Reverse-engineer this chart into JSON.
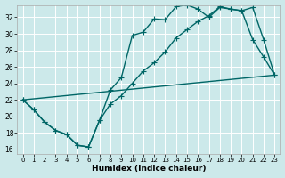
{
  "xlabel": "Humidex (Indice chaleur)",
  "bg_color": "#cce9ea",
  "grid_color": "#b8d8da",
  "line_color": "#006666",
  "xlim": [
    -0.5,
    23.5
  ],
  "ylim": [
    15.5,
    33.5
  ],
  "xticks": [
    0,
    1,
    2,
    3,
    4,
    5,
    6,
    7,
    8,
    9,
    10,
    11,
    12,
    13,
    14,
    15,
    16,
    17,
    18,
    19,
    20,
    21,
    22,
    23
  ],
  "yticks": [
    16,
    18,
    20,
    22,
    24,
    26,
    28,
    30,
    32
  ],
  "line1_x": [
    0,
    1,
    2,
    3,
    4,
    5,
    6,
    7,
    8,
    9,
    10,
    11,
    12,
    13,
    14,
    15,
    16,
    17,
    18,
    19,
    20,
    21,
    22,
    23
  ],
  "line1_y": [
    22.0,
    20.8,
    19.3,
    18.3,
    17.8,
    16.5,
    16.3,
    19.5,
    23.2,
    24.7,
    29.8,
    30.2,
    31.8,
    31.7,
    33.3,
    33.5,
    33.0,
    32.0,
    33.2,
    33.0,
    32.8,
    29.3,
    27.2,
    25.0
  ],
  "line2_x": [
    0,
    1,
    2,
    3,
    4,
    5,
    6,
    7,
    8,
    9,
    10,
    11,
    12,
    13,
    14,
    15,
    16,
    17,
    18,
    19,
    20,
    21,
    22,
    23
  ],
  "line2_y": [
    22.0,
    20.8,
    19.3,
    18.3,
    17.8,
    16.5,
    16.3,
    19.5,
    21.5,
    22.5,
    24.0,
    25.5,
    26.5,
    27.8,
    29.5,
    30.5,
    31.5,
    32.2,
    33.3,
    33.0,
    32.8,
    33.2,
    29.3,
    25.0
  ],
  "line3_x": [
    0,
    23
  ],
  "line3_y": [
    22.0,
    25.0
  ],
  "markersize": 2.5,
  "linewidth": 1.0
}
